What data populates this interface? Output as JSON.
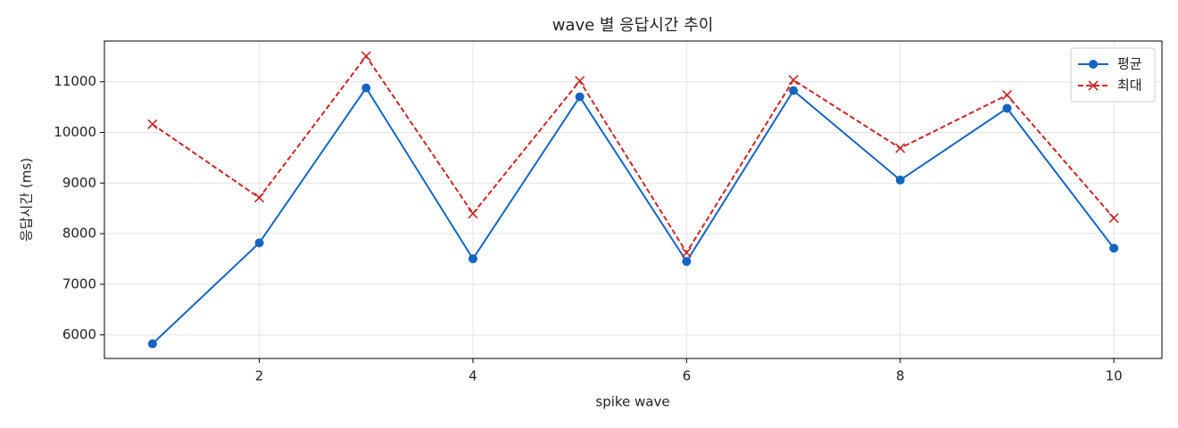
{
  "chart_data": {
    "type": "line",
    "title": "wave 별 응답시간 추이",
    "xlabel": "spike wave",
    "ylabel": "응답시간 (ms)",
    "x": [
      1,
      2,
      3,
      4,
      5,
      6,
      7,
      8,
      9,
      10
    ],
    "series": [
      {
        "name": "평균",
        "color": "#1565c0",
        "marker": "circle",
        "dashed": false,
        "values": [
          5825,
          7818,
          10878,
          7503,
          10703,
          7451,
          10825,
          9059,
          10476,
          7713
        ]
      },
      {
        "name": "최대",
        "color": "#c62828",
        "marker": "cross",
        "dashed": true,
        "values": [
          10161,
          8710,
          11507,
          8395,
          11017,
          7626,
          11035,
          9689,
          10738,
          8308
        ]
      }
    ],
    "xlim": [
      0.55,
      10.45
    ],
    "ylim": [
      5535,
      11805
    ],
    "xticks": [
      2,
      4,
      6,
      8,
      10
    ],
    "yticks": [
      6000,
      7000,
      8000,
      9000,
      10000,
      11000
    ],
    "grid": true,
    "legend": "upper right"
  }
}
